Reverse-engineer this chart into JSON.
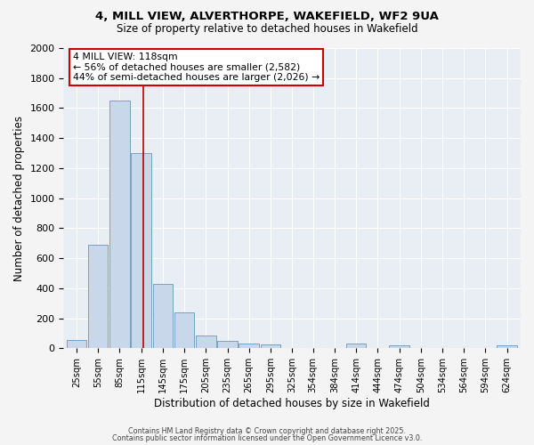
{
  "title_line1": "4, MILL VIEW, ALVERTHORPE, WAKEFIELD, WF2 9UA",
  "title_line2": "Size of property relative to detached houses in Wakefield",
  "xlabel": "Distribution of detached houses by size in Wakefield",
  "ylabel": "Number of detached properties",
  "bin_centers": [
    25,
    55,
    85,
    115,
    145,
    175,
    205,
    235,
    265,
    295,
    325,
    354,
    384,
    414,
    444,
    474,
    504,
    534,
    564,
    594,
    624
  ],
  "counts": [
    55,
    690,
    1650,
    1300,
    430,
    240,
    85,
    50,
    30,
    25,
    0,
    0,
    0,
    30,
    0,
    20,
    0,
    0,
    0,
    0,
    20
  ],
  "bar_color": "#c8d8ea",
  "bar_edge_color": "#6699bb",
  "vline_x": 118,
  "vline_color": "#bb0000",
  "annotation_text": "4 MILL VIEW: 118sqm\n← 56% of detached houses are smaller (2,582)\n44% of semi-detached houses are larger (2,026) →",
  "annotation_box_color": "#cc0000",
  "ylim": [
    0,
    2000
  ],
  "yticks": [
    0,
    200,
    400,
    600,
    800,
    1000,
    1200,
    1400,
    1600,
    1800,
    2000
  ],
  "bg_color": "#e8eef4",
  "grid_color": "#ffffff",
  "fig_bg": "#f4f4f4",
  "footer_line1": "Contains HM Land Registry data © Crown copyright and database right 2025.",
  "footer_line2": "Contains public sector information licensed under the Open Government Licence v3.0."
}
